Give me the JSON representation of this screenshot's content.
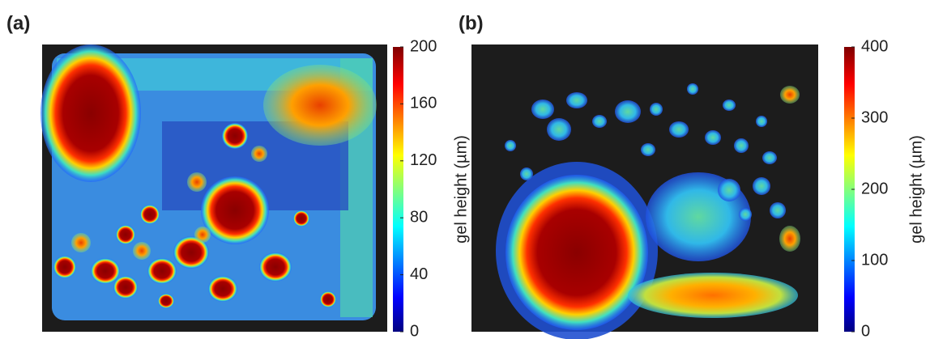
{
  "chart_data": [
    {
      "type": "heatmap",
      "panel_label": "(a)",
      "colorbar": {
        "label": "gel height (µm)",
        "lim": [
          0,
          200
        ],
        "ticks": [
          0,
          40,
          80,
          120,
          160,
          200
        ]
      }
    },
    {
      "type": "heatmap",
      "panel_label": "(b)",
      "colorbar": {
        "label": "gel height (µm)",
        "lim": [
          0,
          400
        ],
        "ticks": [
          0,
          100,
          200,
          300,
          400
        ]
      }
    }
  ]
}
